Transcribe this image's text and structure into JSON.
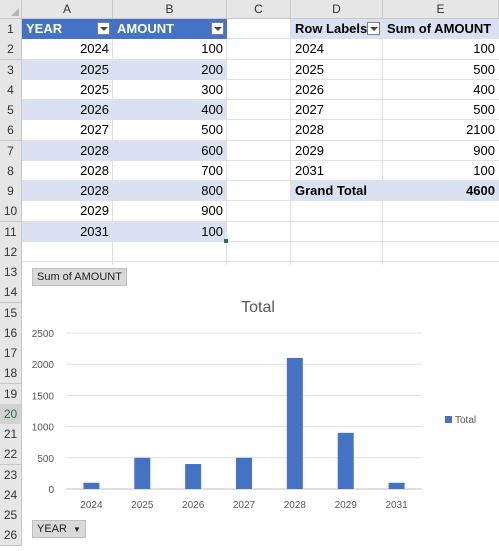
{
  "columns": [
    "A",
    "B",
    "C",
    "D",
    "E"
  ],
  "rows": [
    "1",
    "2",
    "3",
    "4",
    "5",
    "6",
    "7",
    "8",
    "9",
    "10",
    "11",
    "12",
    "13",
    "14",
    "15",
    "16",
    "17",
    "18",
    "19",
    "20",
    "21",
    "22",
    "23",
    "24",
    "25",
    "26"
  ],
  "table": {
    "headers": [
      "YEAR",
      "AMOUNT"
    ],
    "rows": [
      [
        "2024",
        "100"
      ],
      [
        "2025",
        "200"
      ],
      [
        "2025",
        "300"
      ],
      [
        "2026",
        "400"
      ],
      [
        "2027",
        "500"
      ],
      [
        "2028",
        "600"
      ],
      [
        "2028",
        "700"
      ],
      [
        "2028",
        "800"
      ],
      [
        "2029",
        "900"
      ],
      [
        "2031",
        "100"
      ]
    ]
  },
  "pivot": {
    "header_labels": "Row Labels",
    "header_sum": "Sum of AMOUNT",
    "rows": [
      [
        "2024",
        "100"
      ],
      [
        "2025",
        "500"
      ],
      [
        "2026",
        "400"
      ],
      [
        "2027",
        "500"
      ],
      [
        "2028",
        "2100"
      ],
      [
        "2029",
        "900"
      ],
      [
        "2031",
        "100"
      ]
    ],
    "grand_total_label": "Grand Total",
    "grand_total_value": "4600"
  },
  "chart_data": {
    "type": "bar",
    "title": "Total",
    "categories": [
      "2024",
      "2025",
      "2026",
      "2027",
      "2028",
      "2029",
      "2031"
    ],
    "series": [
      {
        "name": "Total",
        "values": [
          100,
          500,
          400,
          500,
          2100,
          900,
          100
        ]
      }
    ],
    "yticks": [
      "0",
      "500",
      "1000",
      "1500",
      "2000",
      "2500"
    ],
    "ylim": [
      0,
      2500
    ],
    "legend_position": "right",
    "grid": true,
    "bar_color": "#4472c4",
    "value_field_button": "Sum of AMOUNT",
    "axis_field_button": "YEAR"
  }
}
